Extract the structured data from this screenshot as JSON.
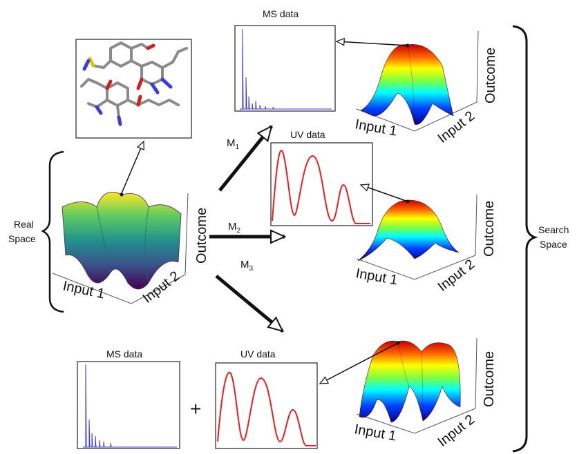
{
  "labels": {
    "real_space_line1": "Real",
    "real_space_line2": "Space",
    "search_space_line1": "Search",
    "search_space_line2": "Space",
    "input1": "Input 1",
    "input2": "Input 2",
    "outcome": "Outcome",
    "ms_data": "MS data",
    "uv_data": "UV data",
    "plus": "+"
  },
  "methods": [
    {
      "letter": "M",
      "sub": "1"
    },
    {
      "letter": "M",
      "sub": "2"
    },
    {
      "letter": "M",
      "sub": "3"
    }
  ],
  "colors": {
    "uv_line": "#ee1c1c",
    "ms_line": "#3a3ad8",
    "arrow": "#111111",
    "panel_border": "#222222"
  },
  "icons": [
    "molecule-structure",
    "viridis-surface",
    "jet-surface"
  ]
}
